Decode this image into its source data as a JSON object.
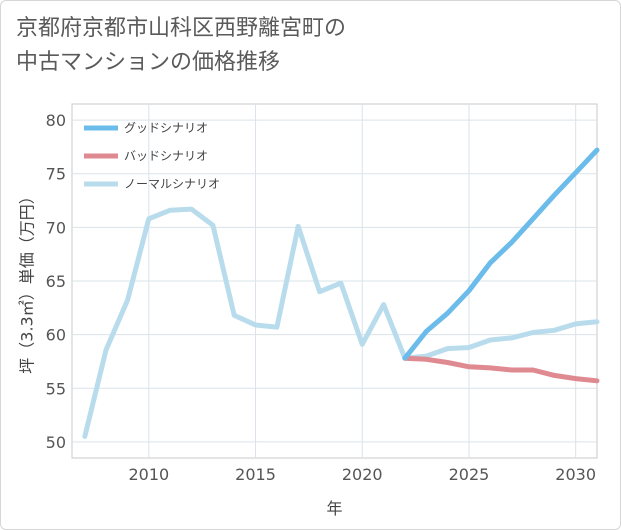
{
  "chart_data": {
    "type": "line",
    "title": "京都府京都市山科区西野離宮町の\n中古マンションの価格推移",
    "xlabel": "年",
    "ylabel": "坪（3.3㎡）単価（万円）",
    "xlim": [
      2006.4,
      2031
    ],
    "ylim": [
      48.5,
      81.5
    ],
    "xticks": [
      2010,
      2015,
      2020,
      2025,
      2030
    ],
    "yticks": [
      50,
      55,
      60,
      65,
      70,
      75,
      80
    ],
    "xtick_labels": [
      "2010",
      "2015",
      "2020",
      "2025",
      "2030"
    ],
    "ytick_labels": [
      "50",
      "55",
      "60",
      "65",
      "70",
      "75",
      "80"
    ],
    "grid": true,
    "legend_position": "top-left",
    "series": [
      {
        "name": "グッドシナリオ",
        "color": "#6bbcea",
        "x": [
          2022,
          2023,
          2024,
          2025,
          2026,
          2027,
          2028,
          2029,
          2030,
          2031
        ],
        "values": [
          57.8,
          60.3,
          62.0,
          64.1,
          66.7,
          68.6,
          70.8,
          73.0,
          75.1,
          77.2
        ]
      },
      {
        "name": "バッドシナリオ",
        "color": "#df8a91",
        "x": [
          2022,
          2023,
          2024,
          2025,
          2026,
          2027,
          2028,
          2029,
          2030,
          2031
        ],
        "values": [
          57.8,
          57.7,
          57.4,
          57.0,
          56.9,
          56.7,
          56.7,
          56.2,
          55.9,
          55.7
        ]
      },
      {
        "name": "ノーマルシナリオ",
        "color": "#b9dced",
        "x": [
          2007,
          2008,
          2009,
          2010,
          2011,
          2012,
          2013,
          2014,
          2015,
          2016,
          2017,
          2018,
          2019,
          2020,
          2021,
          2022,
          2023,
          2024,
          2025,
          2026,
          2027,
          2028,
          2029,
          2030,
          2031
        ],
        "values": [
          50.5,
          58.6,
          63.2,
          70.8,
          71.6,
          71.7,
          70.2,
          61.8,
          60.9,
          60.7,
          70.1,
          64.0,
          64.8,
          59.1,
          62.8,
          57.8,
          58.0,
          58.7,
          58.8,
          59.5,
          59.7,
          60.2,
          60.4,
          61.0,
          61.2
        ]
      }
    ]
  }
}
